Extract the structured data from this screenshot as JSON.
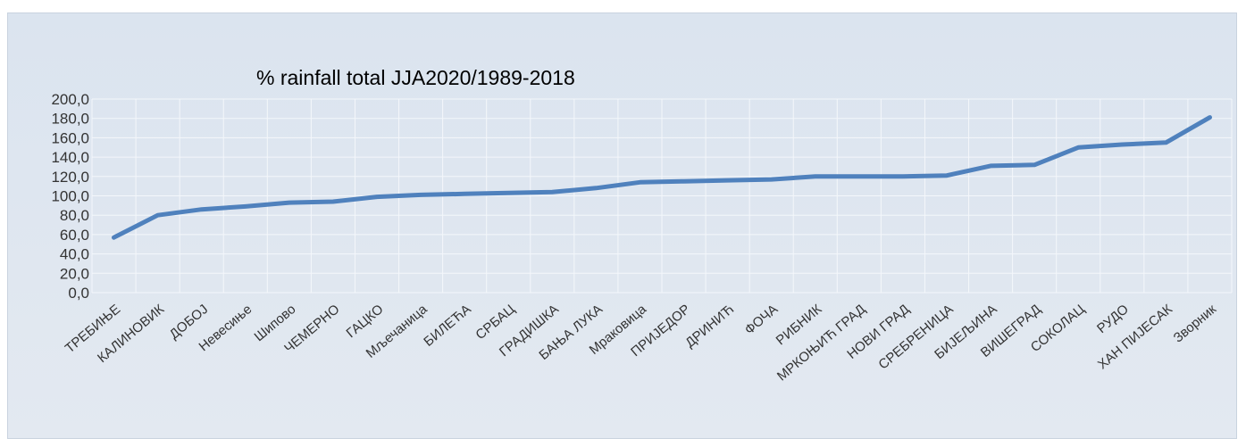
{
  "chart_data": {
    "type": "line",
    "title": "% rainfall total JJA2020/1989-2018",
    "xlabel": "",
    "ylabel": "",
    "ylim": [
      0,
      200
    ],
    "y_ticks": [
      "0,0",
      "20,0",
      "40,0",
      "60,0",
      "80,0",
      "100,0",
      "120,0",
      "140,0",
      "160,0",
      "180,0",
      "200,0"
    ],
    "grid": true,
    "legend": "none",
    "color": "#4f81bd",
    "categories": [
      "ТРЕБИЊЕ",
      "КАЛИНОВИК",
      "ДОБОЈ",
      "Невесиње",
      "Шипово",
      "ЧЕМЕРНО",
      "ГАЦКО",
      "Мљечаница",
      "БИЛЕЋА",
      "СРБАЦ",
      "ГРАДИШКА",
      "БАЊА ЛУКА",
      "Мраковица",
      "ПРИЈЕДОР",
      "ДРИНИЋ",
      "ФОЧА",
      "РИБНИК",
      "МРКОЊИЋ ГРАД",
      "НОВИ ГРАД",
      "СРЕБРЕНИЦА",
      "БИЈЕЉИНА",
      "ВИШЕГРАД",
      "СОКОЛАЦ",
      "РУДО",
      "ХАН ПИЈЕСАК",
      "Зворник"
    ],
    "values": [
      57,
      80,
      86,
      89,
      93,
      94,
      99,
      101,
      102,
      103,
      104,
      108,
      114,
      115,
      116,
      117,
      120,
      120,
      120,
      121,
      131,
      132,
      150,
      153,
      155,
      181
    ]
  }
}
